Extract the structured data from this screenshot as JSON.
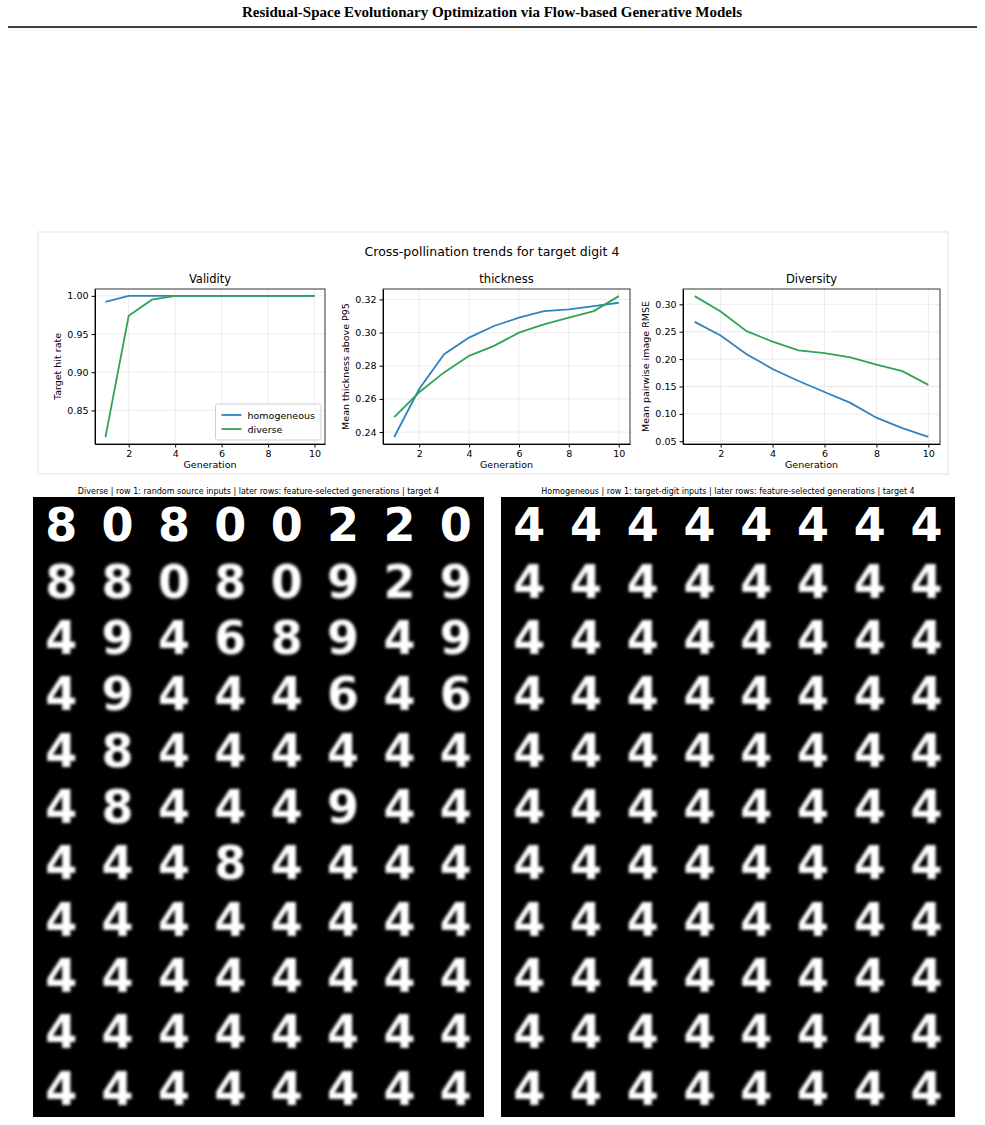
{
  "header": {
    "title": "Residual-Space Evolutionary Optimization via Flow-based Generative Models"
  },
  "suptitle": "Cross-pollination trends for target digit 4",
  "chart_data": [
    {
      "type": "line",
      "title": "Validity",
      "x_label": "Generation",
      "y_label": "Target hit rate",
      "x": [
        1,
        2,
        3,
        4,
        5,
        6,
        7,
        8,
        9,
        10
      ],
      "xlim": [
        0.55,
        10.45
      ],
      "xticks": [
        2,
        4,
        6,
        8,
        10
      ],
      "ylim": [
        0.806,
        1.009
      ],
      "yticks": [
        {
          "value": 0.85,
          "label": "0.85"
        },
        {
          "value": 0.9,
          "label": "0.90"
        },
        {
          "value": 0.95,
          "label": "0.95"
        },
        {
          "value": 1.0,
          "label": "1.00"
        }
      ],
      "grid": true,
      "legend": "lower right",
      "series": [
        {
          "name": "homogeneous",
          "color": "#3182bd",
          "values": [
            0.992,
            1.0,
            1.0,
            1.0,
            1.0,
            1.0,
            1.0,
            1.0,
            1.0,
            1.0
          ]
        },
        {
          "name": "diverse",
          "color": "#31a354",
          "values": [
            0.815,
            0.974,
            0.995,
            1.0,
            1.0,
            1.0,
            1.0,
            1.0,
            1.0,
            1.0
          ]
        }
      ]
    },
    {
      "type": "line",
      "title": "thickness",
      "x_label": "Generation",
      "y_label": "Mean thickness above P95",
      "x": [
        1,
        2,
        3,
        4,
        5,
        6,
        7,
        8,
        9,
        10
      ],
      "xlim": [
        0.55,
        10.45
      ],
      "xticks": [
        2,
        4,
        6,
        8,
        10
      ],
      "ylim": [
        0.2328,
        0.3263
      ],
      "yticks": [
        {
          "value": 0.24,
          "label": "0.24"
        },
        {
          "value": 0.26,
          "label": "0.26"
        },
        {
          "value": 0.28,
          "label": "0.28"
        },
        {
          "value": 0.3,
          "label": "0.30"
        },
        {
          "value": 0.32,
          "label": "0.32"
        }
      ],
      "grid": true,
      "series": [
        {
          "color": "#3182bd",
          "values": [
            0.237,
            0.266,
            0.287,
            0.297,
            0.304,
            0.309,
            0.313,
            0.314,
            0.316,
            0.318
          ]
        },
        {
          "color": "#31a354",
          "values": [
            0.249,
            0.264,
            0.276,
            0.286,
            0.292,
            0.3,
            0.305,
            0.309,
            0.313,
            0.322
          ]
        }
      ]
    },
    {
      "type": "line",
      "title": "Diversity",
      "x_label": "Generation",
      "y_label": "Mean pairwise image RMSE",
      "x": [
        1,
        2,
        3,
        4,
        5,
        6,
        7,
        8,
        9,
        10
      ],
      "xlim": [
        0.55,
        10.45
      ],
      "xticks": [
        2,
        4,
        6,
        8,
        10
      ],
      "ylim": [
        0.045,
        0.328
      ],
      "yticks": [
        {
          "value": 0.05,
          "label": "0.05"
        },
        {
          "value": 0.1,
          "label": "0.10"
        },
        {
          "value": 0.15,
          "label": "0.15"
        },
        {
          "value": 0.2,
          "label": "0.20"
        },
        {
          "value": 0.25,
          "label": "0.25"
        },
        {
          "value": 0.3,
          "label": "0.30"
        }
      ],
      "grid": true,
      "series": [
        {
          "color": "#3182bd",
          "values": [
            0.268,
            0.243,
            0.209,
            0.182,
            0.16,
            0.14,
            0.12,
            0.093,
            0.074,
            0.058
          ]
        },
        {
          "color": "#31a354",
          "values": [
            0.315,
            0.287,
            0.251,
            0.232,
            0.216,
            0.211,
            0.203,
            0.19,
            0.178,
            0.153
          ]
        }
      ]
    }
  ],
  "image_grids": [
    {
      "title": "Diverse | row 1: random source inputs | later rows: feature-selected generations | target 4",
      "rows": [
        [
          "8",
          "0",
          "8",
          "0",
          "0",
          "2",
          "2",
          "0"
        ],
        [
          "8",
          "8",
          "0",
          "8",
          "0",
          "9",
          "2",
          "9"
        ],
        [
          "4",
          "9",
          "4",
          "6",
          "8",
          "9",
          "4",
          "9"
        ],
        [
          "4",
          "9",
          "4",
          "4",
          "4",
          "6",
          "4",
          "6"
        ],
        [
          "4",
          "8",
          "4",
          "4",
          "4",
          "4",
          "4",
          "4"
        ],
        [
          "4",
          "8",
          "4",
          "4",
          "4",
          "9",
          "4",
          "4"
        ],
        [
          "4",
          "4",
          "4",
          "8",
          "4",
          "4",
          "4",
          "4"
        ],
        [
          "4",
          "4",
          "4",
          "4",
          "4",
          "4",
          "4",
          "4"
        ],
        [
          "4",
          "4",
          "4",
          "4",
          "4",
          "4",
          "4",
          "4"
        ],
        [
          "4",
          "4",
          "4",
          "4",
          "4",
          "4",
          "4",
          "4"
        ],
        [
          "4",
          "4",
          "4",
          "4",
          "4",
          "4",
          "4",
          "4"
        ]
      ]
    },
    {
      "title": "Homogeneous | row 1: target-digit inputs | later rows: feature-selected generations | target 4",
      "rows": [
        [
          "4",
          "4",
          "4",
          "4",
          "4",
          "4",
          "4",
          "4"
        ],
        [
          "4",
          "4",
          "4",
          "4",
          "4",
          "4",
          "4",
          "4"
        ],
        [
          "4",
          "4",
          "4",
          "4",
          "4",
          "4",
          "4",
          "4"
        ],
        [
          "4",
          "4",
          "4",
          "4",
          "4",
          "4",
          "4",
          "4"
        ],
        [
          "4",
          "4",
          "4",
          "4",
          "4",
          "4",
          "4",
          "4"
        ],
        [
          "4",
          "4",
          "4",
          "4",
          "4",
          "4",
          "4",
          "4"
        ],
        [
          "4",
          "4",
          "4",
          "4",
          "4",
          "4",
          "4",
          "4"
        ],
        [
          "4",
          "4",
          "4",
          "4",
          "4",
          "4",
          "4",
          "4"
        ],
        [
          "4",
          "4",
          "4",
          "4",
          "4",
          "4",
          "4",
          "4"
        ],
        [
          "4",
          "4",
          "4",
          "4",
          "4",
          "4",
          "4",
          "4"
        ],
        [
          "4",
          "4",
          "4",
          "4",
          "4",
          "4",
          "4",
          "4"
        ]
      ]
    }
  ]
}
